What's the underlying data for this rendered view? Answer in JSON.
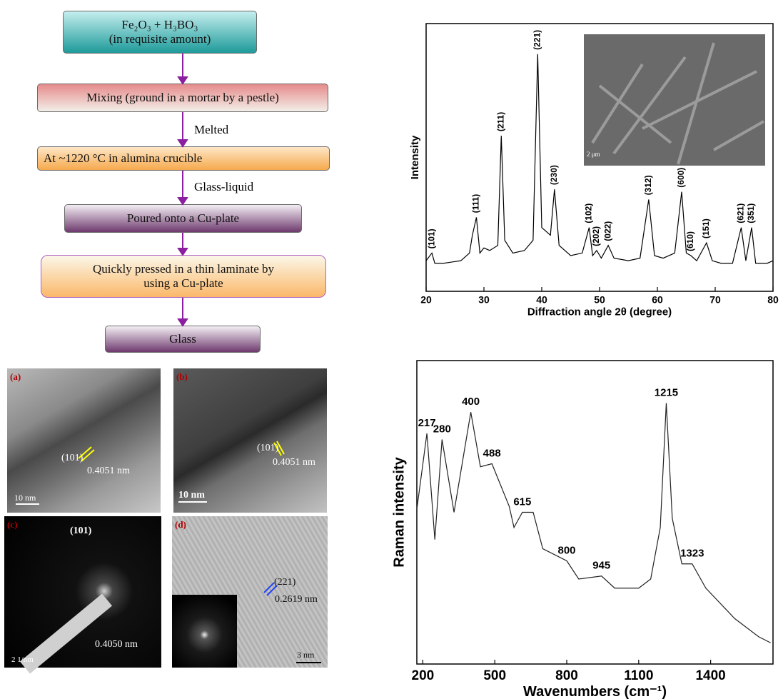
{
  "flowchart": {
    "nodes": [
      {
        "lines": [
          "Fe₂O₃ + H₃BO₃",
          "(in requisite amount)"
        ]
      },
      {
        "lines": [
          "Mixing (ground in a mortar by a pestle)"
        ]
      },
      {
        "lines": [
          "At ~1220 °C in alumina crucible"
        ]
      },
      {
        "lines": [
          "Poured onto a Cu-plate"
        ]
      },
      {
        "lines": [
          "Quickly pressed in a thin laminate by",
          "using a Cu-plate"
        ]
      },
      {
        "lines": [
          "Glass"
        ]
      }
    ],
    "edge_labels": [
      "Melted",
      "Glass-liquid"
    ]
  },
  "tem": {
    "a": {
      "panel": "(a)",
      "plane": "(101)",
      "spacing": "0.4051 nm",
      "scale": "10 nm"
    },
    "b": {
      "panel": "(b)",
      "plane": "(101)",
      "spacing": "0.4051 nm",
      "scale": "10 nm"
    },
    "c": {
      "panel": "(c)",
      "plane": "(101)",
      "spacing": "0.4050 nm",
      "scale": "2 1/nm"
    },
    "d": {
      "panel": "(d)",
      "plane": "(221)",
      "spacing": "0.2619 nm",
      "scale": "3 nm"
    }
  },
  "chart_data": [
    {
      "type": "line",
      "x_label": "Diffraction angle 2θ (degree)",
      "y_label": "Intensity",
      "inset_scale": "2 μm",
      "x": [
        20,
        21,
        21.5,
        23,
        26,
        27.5,
        28,
        28.7,
        29.3,
        30,
        31,
        32.4,
        33,
        33.6,
        35,
        37,
        38.5,
        39.3,
        40,
        41.5,
        42.2,
        43,
        45,
        47,
        48.2,
        48.8,
        49.5,
        50.3,
        51.5,
        52.5,
        55,
        57,
        58.5,
        59.5,
        61,
        63,
        64.2,
        65,
        65.8,
        66.8,
        68.5,
        69.5,
        71,
        73,
        74.5,
        75.3,
        76.3,
        77,
        79,
        80
      ],
      "series": [
        {
          "color": "#000000",
          "values": [
            12,
            15,
            11,
            11,
            12,
            15,
            22,
            29,
            15,
            17,
            16,
            18,
            61,
            20,
            15,
            16,
            20,
            93,
            25,
            22,
            40,
            18,
            14,
            15,
            25,
            14,
            16,
            13,
            18,
            13,
            12,
            13,
            36,
            14,
            13,
            15,
            39,
            15,
            14,
            12,
            19,
            12,
            11,
            11,
            25,
            12,
            25,
            11,
            11,
            12
          ]
        }
      ],
      "xlim": [
        20,
        80
      ],
      "ylim": [
        0,
        105
      ],
      "xticks": [
        20,
        30,
        40,
        50,
        60,
        70,
        80
      ],
      "peak_label_orientation": "vertical",
      "peak_labels": [
        {
          "label": "(101)",
          "x": 21
        },
        {
          "label": "(111)",
          "x": 28.7
        },
        {
          "label": "(211)",
          "x": 33
        },
        {
          "label": "(221)",
          "x": 39.3
        },
        {
          "label": "(230)",
          "x": 42.2
        },
        {
          "label": "(102)",
          "x": 48.2
        },
        {
          "label": "(202)",
          "x": 49.5
        },
        {
          "label": "(022)",
          "x": 51.5
        },
        {
          "label": "(312)",
          "x": 58.5
        },
        {
          "label": "(600)",
          "x": 64.2
        },
        {
          "label": "(610)",
          "x": 65.8
        },
        {
          "label": "(151)",
          "x": 68.5
        },
        {
          "label": "(621)",
          "x": 74.5
        },
        {
          "label": "(351)",
          "x": 76.3
        }
      ]
    },
    {
      "type": "line",
      "x_label": "Wavenumbers (cm⁻¹)",
      "y_label": "Raman intensity",
      "x": [
        175,
        217,
        250,
        280,
        330,
        400,
        440,
        488,
        560,
        580,
        615,
        660,
        700,
        800,
        850,
        945,
        1000,
        1100,
        1150,
        1190,
        1215,
        1240,
        1280,
        1323,
        1380,
        1500,
        1600,
        1650
      ],
      "series": [
        {
          "color": "#222222",
          "values": [
            51,
            76,
            41,
            74,
            50,
            83,
            65,
            66,
            52,
            45,
            50,
            50,
            38,
            34,
            28,
            29,
            25,
            25,
            28,
            45,
            86,
            48,
            33,
            33,
            25,
            15,
            9,
            7
          ]
        }
      ],
      "xlim": [
        175,
        1660
      ],
      "ylim": [
        0,
        100
      ],
      "xticks": [
        200,
        500,
        800,
        1100,
        1400
      ],
      "peak_label_orientation": "horizontal",
      "peak_labels": [
        217,
        280,
        400,
        488,
        615,
        800,
        945,
        1215,
        1323
      ]
    }
  ]
}
